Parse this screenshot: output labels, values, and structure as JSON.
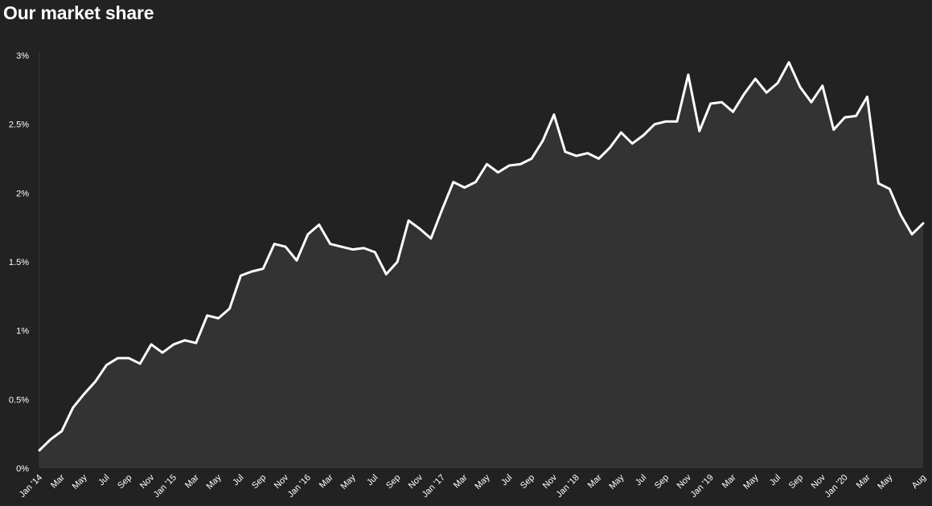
{
  "page": {
    "title": "Our market share"
  },
  "chart_data": {
    "type": "area",
    "title": "Our market share",
    "xlabel": "",
    "ylabel": "",
    "ylim": [
      0,
      3
    ],
    "y_unit": "%",
    "y_ticks": [
      0,
      0.5,
      1,
      1.5,
      2,
      2.5,
      3
    ],
    "y_tick_labels": [
      "0%",
      "0.5%",
      "1%",
      "1.5%",
      "2%",
      "2.5%",
      "3%"
    ],
    "grid": false,
    "x": [
      "Jan '14",
      "Feb '14",
      "Mar '14",
      "Apr '14",
      "May '14",
      "Jun '14",
      "Jul '14",
      "Aug '14",
      "Sep '14",
      "Oct '14",
      "Nov '14",
      "Dec '14",
      "Jan '15",
      "Feb '15",
      "Mar '15",
      "Apr '15",
      "May '15",
      "Jun '15",
      "Jul '15",
      "Aug '15",
      "Sep '15",
      "Oct '15",
      "Nov '15",
      "Dec '15",
      "Jan '16",
      "Feb '16",
      "Mar '16",
      "Apr '16",
      "May '16",
      "Jun '16",
      "Jul '16",
      "Aug '16",
      "Sep '16",
      "Oct '16",
      "Nov '16",
      "Dec '16",
      "Jan '17",
      "Feb '17",
      "Mar '17",
      "Apr '17",
      "May '17",
      "Jun '17",
      "Jul '17",
      "Aug '17",
      "Sep '17",
      "Oct '17",
      "Nov '17",
      "Dec '17",
      "Jan '18",
      "Feb '18",
      "Mar '18",
      "Apr '18",
      "May '18",
      "Jun '18",
      "Jul '18",
      "Aug '18",
      "Sep '18",
      "Oct '18",
      "Nov '18",
      "Dec '18",
      "Jan '19",
      "Feb '19",
      "Mar '19",
      "Apr '19",
      "May '19",
      "Jun '19",
      "Jul '19",
      "Aug '19",
      "Sep '19",
      "Oct '19",
      "Nov '19",
      "Dec '19",
      "Jan '20",
      "Feb '20",
      "Mar '20",
      "Apr '20",
      "May '20",
      "Jun '20",
      "Jul '20",
      "Aug '20"
    ],
    "x_tick_labels": [
      "Jan '14",
      "Mar",
      "May",
      "Jul",
      "Sep",
      "Nov",
      "Jan '15",
      "Mar",
      "May",
      "Jul",
      "Sep",
      "Nov",
      "Jan '16",
      "Mar",
      "May",
      "Jul",
      "Sep",
      "Nov",
      "Jan '17",
      "Mar",
      "May",
      "Jul",
      "Sep",
      "Nov",
      "Jan '18",
      "Mar",
      "May",
      "Jul",
      "Sep",
      "Nov",
      "Jan '19",
      "Mar",
      "May",
      "Jul",
      "Sep",
      "Nov",
      "Jan '20",
      "Mar",
      "May",
      "Aug"
    ],
    "x_tick_index": [
      0,
      2,
      4,
      6,
      8,
      10,
      12,
      14,
      16,
      18,
      20,
      22,
      24,
      26,
      28,
      30,
      32,
      34,
      36,
      38,
      40,
      42,
      44,
      46,
      48,
      50,
      52,
      54,
      56,
      58,
      60,
      62,
      64,
      66,
      68,
      70,
      72,
      74,
      76,
      79
    ],
    "values": [
      0.13,
      0.21,
      0.27,
      0.44,
      0.54,
      0.63,
      0.75,
      0.8,
      0.8,
      0.76,
      0.9,
      0.84,
      0.9,
      0.93,
      0.91,
      1.11,
      1.09,
      1.16,
      1.4,
      1.43,
      1.45,
      1.63,
      1.61,
      1.51,
      1.7,
      1.77,
      1.63,
      1.61,
      1.59,
      1.6,
      1.57,
      1.41,
      1.5,
      1.8,
      1.74,
      1.67,
      1.88,
      2.08,
      2.04,
      2.08,
      2.21,
      2.15,
      2.2,
      2.21,
      2.25,
      2.38,
      2.57,
      2.3,
      2.27,
      2.29,
      2.25,
      2.33,
      2.44,
      2.36,
      2.42,
      2.5,
      2.52,
      2.52,
      2.86,
      2.45,
      2.65,
      2.66,
      2.59,
      2.72,
      2.83,
      2.73,
      2.8,
      2.95,
      2.77,
      2.66,
      2.78,
      2.46,
      2.55,
      2.56,
      2.7,
      2.07,
      2.03,
      1.84,
      1.7,
      1.78
    ],
    "colors": {
      "line": "#ffffff",
      "fill": "#333333",
      "background": "#222222",
      "text": "#ffffff"
    }
  }
}
